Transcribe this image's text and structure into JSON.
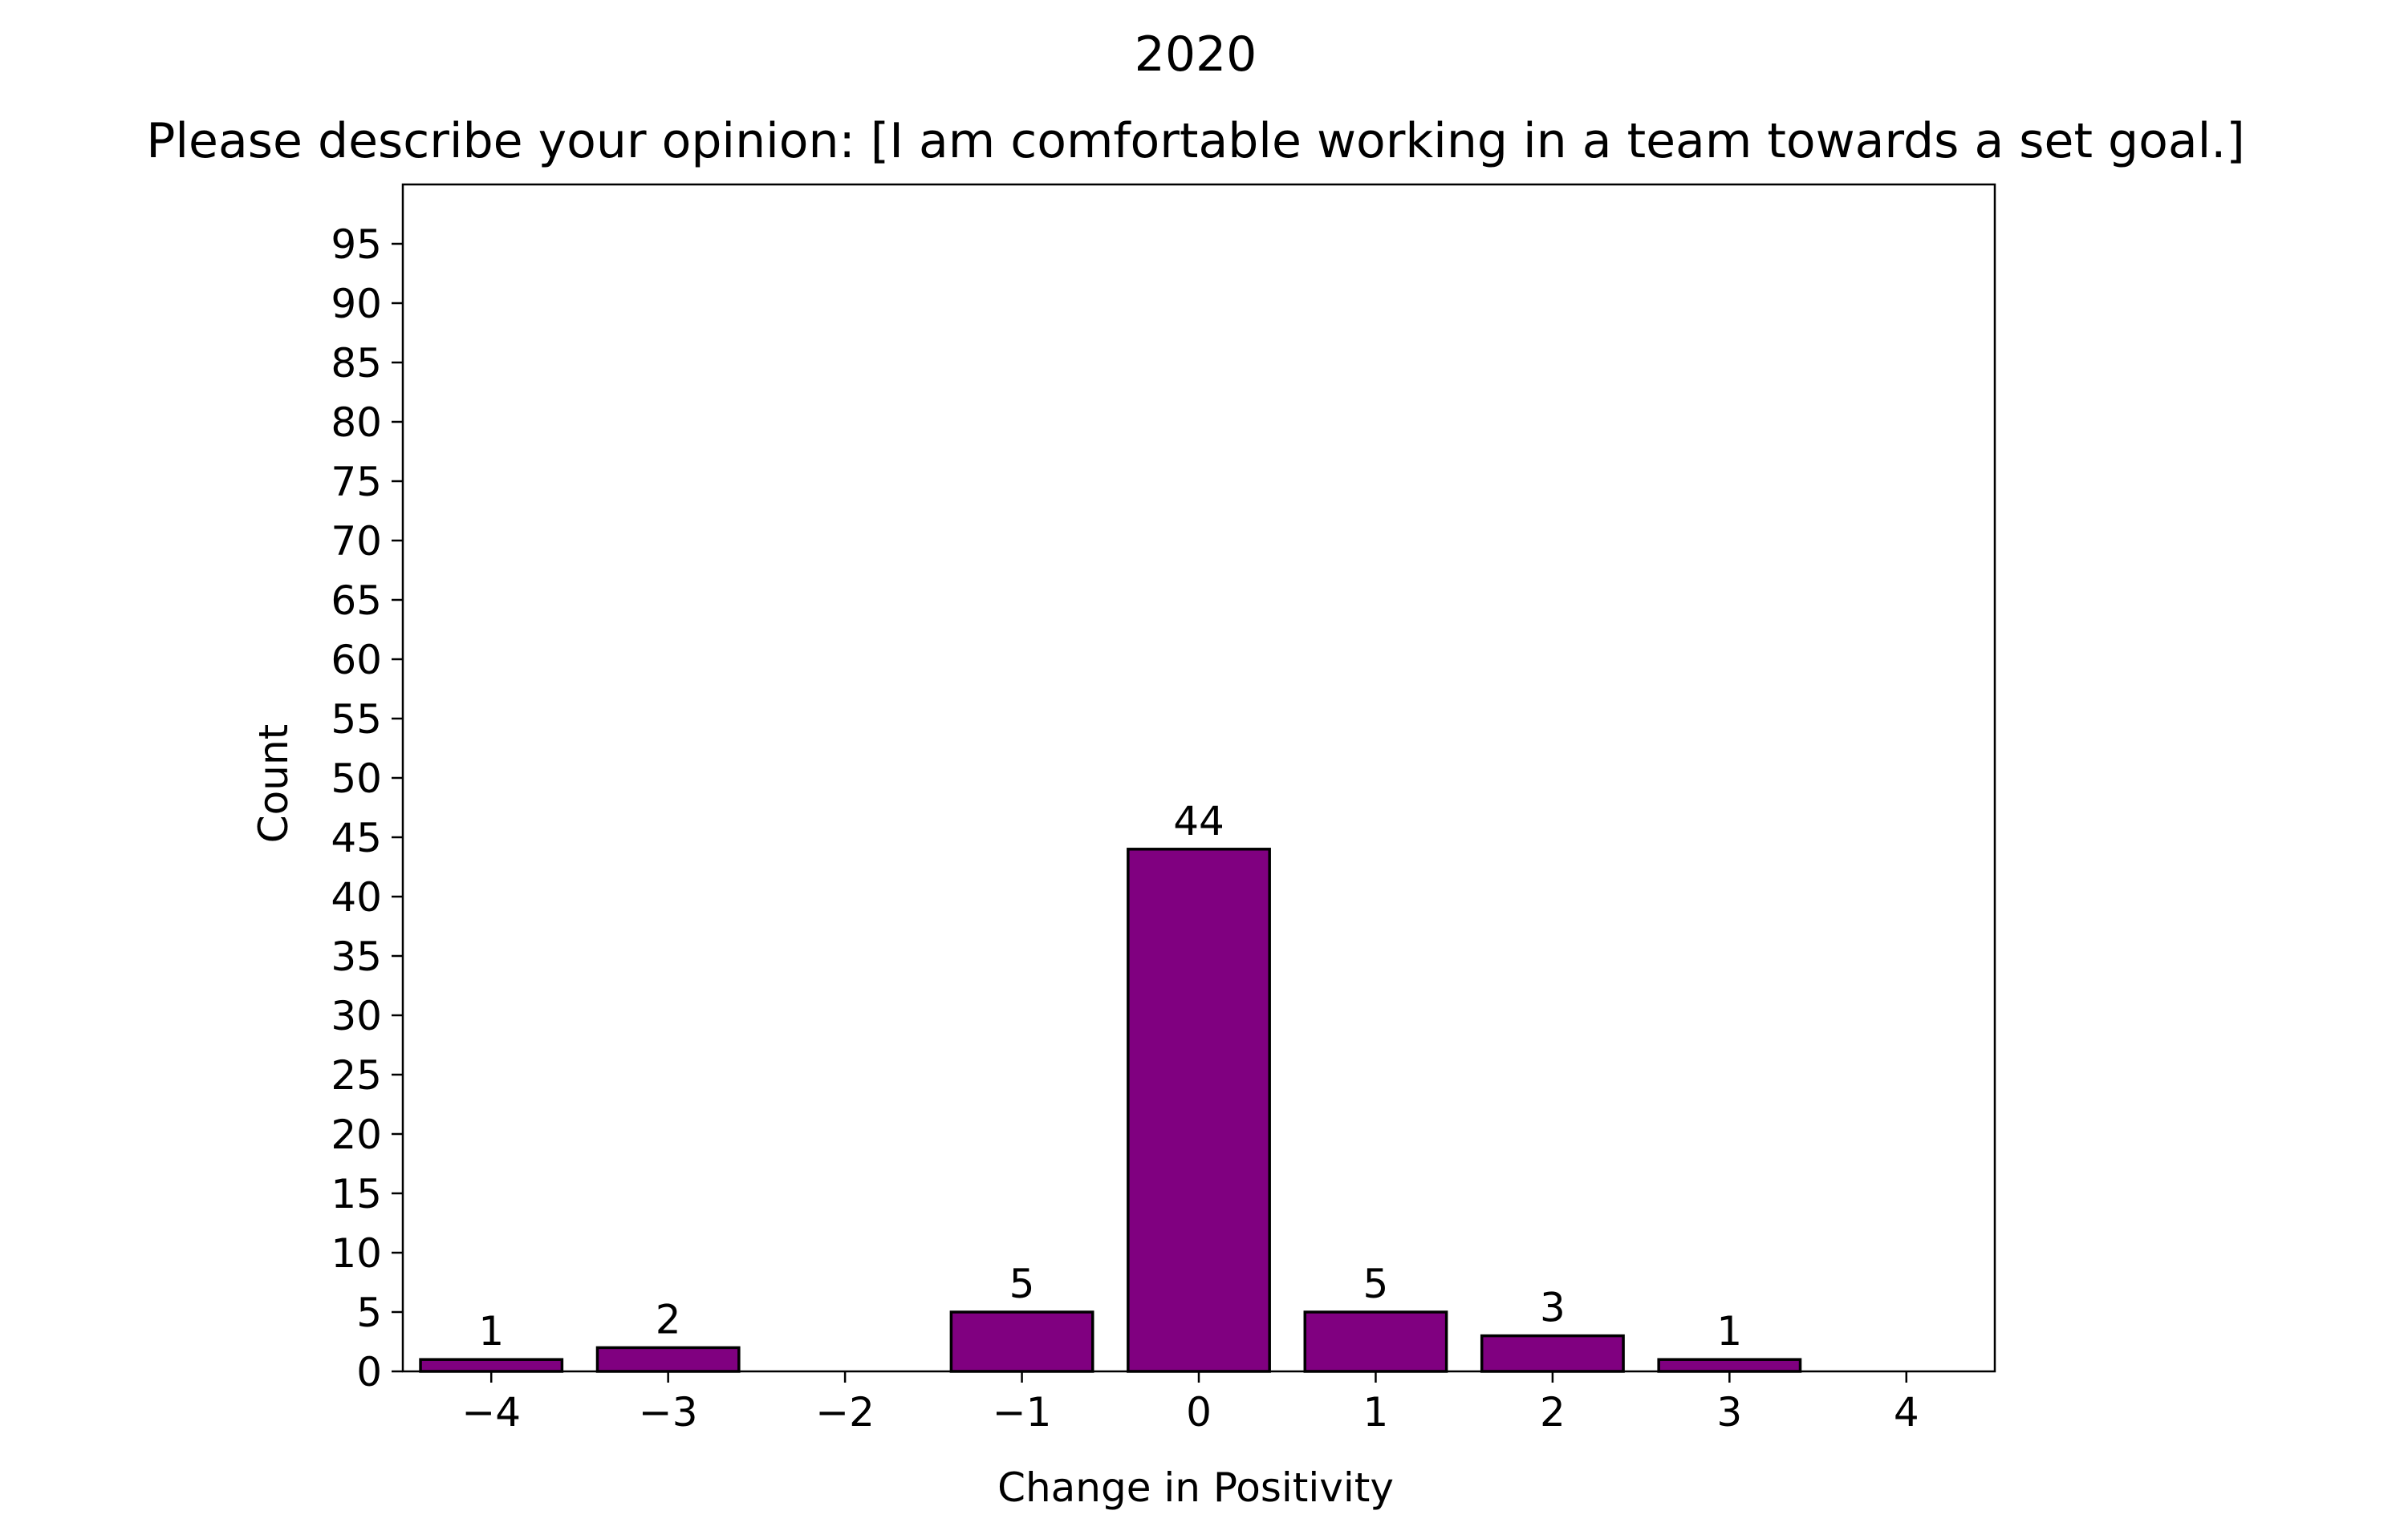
{
  "chart_data": {
    "type": "bar",
    "suptitle": "2020",
    "title": "Please describe your opinion: [I am comfortable working in a team towards a set goal.]",
    "xlabel": "Change in Positivity",
    "ylabel": "Count",
    "categories": [
      -4,
      -3,
      -2,
      -1,
      0,
      1,
      2,
      3,
      4
    ],
    "x_tick_labels": [
      "−4",
      "−3",
      "−2",
      "−1",
      "0",
      "1",
      "2",
      "3",
      "4"
    ],
    "values": [
      1,
      2,
      0,
      5,
      44,
      5,
      3,
      1,
      0
    ],
    "bar_labels": [
      "1",
      "2",
      "",
      "5",
      "44",
      "5",
      "3",
      "1",
      ""
    ],
    "ylim": [
      0,
      100
    ],
    "xlim": [
      -4.5,
      4.5
    ],
    "y_ticks": [
      0,
      5,
      10,
      15,
      20,
      25,
      30,
      35,
      40,
      45,
      50,
      55,
      60,
      65,
      70,
      75,
      80,
      85,
      90,
      95
    ],
    "bar_color": "#800080",
    "edge_color": "#000000",
    "grid": false,
    "legend": "none"
  }
}
